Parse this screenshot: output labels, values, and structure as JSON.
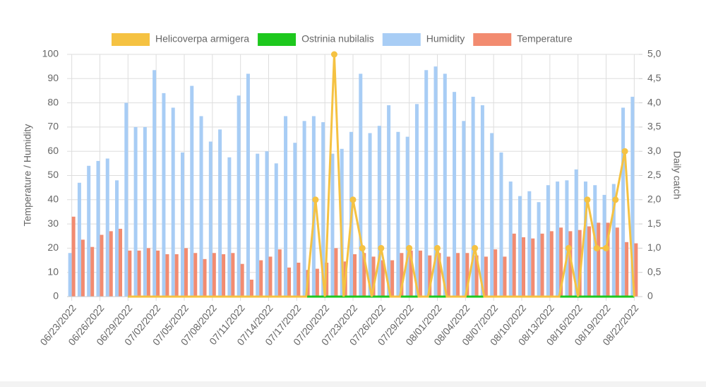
{
  "chart_data": {
    "type": "bar-line",
    "y_label": "Temperature / Humidity",
    "y2_label": "Daily catch",
    "categories": [
      "06/23/2022",
      null,
      null,
      "06/26/2022",
      null,
      null,
      "06/29/2022",
      null,
      null,
      "07/02/2022",
      null,
      null,
      "07/05/2022",
      null,
      null,
      "07/08/2022",
      null,
      null,
      "07/11/2022",
      null,
      null,
      "07/14/2022",
      null,
      null,
      "07/17/2022",
      null,
      null,
      "07/20/2022",
      null,
      null,
      "07/23/2022",
      null,
      null,
      "07/26/2022",
      null,
      null,
      "07/29/2022",
      null,
      null,
      "08/01/2022",
      null,
      null,
      "08/04/2022",
      null,
      null,
      "08/07/2022",
      null,
      null,
      "08/10/2022",
      null,
      null,
      "08/13/2022",
      null,
      null,
      "08/16/2022",
      null,
      null,
      "08/19/2022",
      null,
      null,
      "08/22/2022"
    ],
    "ylim": [
      0,
      100
    ],
    "yticks": [
      0,
      10,
      20,
      30,
      40,
      50,
      60,
      70,
      80,
      90,
      100
    ],
    "y2lim": [
      0,
      5
    ],
    "y2ticks": [
      0,
      {
        "value": 0.5,
        "label": "0,5"
      },
      {
        "value": 1,
        "label": "1,0"
      },
      {
        "value": 1.5,
        "label": "1,5"
      },
      {
        "value": 2,
        "label": "2,0"
      },
      {
        "value": 2.5,
        "label": "2,5"
      },
      {
        "value": 3,
        "label": "3,0"
      },
      {
        "value": 3.5,
        "label": "3,5"
      },
      {
        "value": 4,
        "label": "4,0"
      },
      {
        "value": 4.5,
        "label": "4,5"
      },
      {
        "value": 5,
        "label": "5,0"
      }
    ],
    "grid": true,
    "legend": "top",
    "series": [
      {
        "name": "Helicoverpa armigera",
        "type": "line",
        "axis": "y2",
        "color": "#f5c242",
        "values": [
          null,
          null,
          null,
          null,
          null,
          null,
          0,
          0,
          0,
          0,
          0,
          0,
          0,
          0,
          0,
          0,
          0,
          0,
          0,
          0,
          0,
          0,
          0,
          0,
          0,
          0,
          2,
          0,
          5,
          0,
          2,
          1,
          0,
          1,
          0,
          0,
          1,
          0,
          0,
          1,
          0,
          0,
          0,
          1,
          0,
          0,
          0,
          0,
          0,
          0,
          0,
          0,
          0,
          1,
          0,
          2,
          1,
          1,
          2,
          3,
          0
        ]
      },
      {
        "name": "Ostrinia nubilalis",
        "type": "line",
        "axis": "y2",
        "color": "#1ec81e",
        "values": [
          null,
          null,
          null,
          null,
          null,
          null,
          0,
          0,
          0,
          0,
          0,
          0,
          0,
          0,
          0,
          0,
          0,
          0,
          0,
          0,
          0,
          0,
          0,
          0,
          0,
          0,
          0,
          0,
          0,
          0,
          0,
          0,
          0,
          0,
          0,
          0,
          0,
          0,
          0,
          0,
          0,
          0,
          0,
          0,
          0,
          0,
          0,
          0,
          0,
          0,
          0,
          0,
          0,
          0,
          0,
          0,
          0,
          0,
          0,
          0,
          0
        ]
      },
      {
        "name": "Humidity",
        "type": "bar",
        "color": "#a8cdf5",
        "values": [
          18,
          47,
          54,
          56,
          57,
          48,
          80,
          70,
          70,
          93.5,
          84,
          78,
          59.5,
          87,
          74.5,
          64,
          69,
          57.5,
          83,
          92,
          59,
          60,
          55,
          74.5,
          63.5,
          72.5,
          74.5,
          72,
          59,
          61,
          68,
          92,
          67.5,
          70.5,
          79,
          68,
          66,
          79.5,
          93.5,
          95,
          92,
          84.5,
          72.5,
          82.5,
          79,
          67.5,
          59.5,
          47.5,
          41.5,
          43.5,
          39,
          46,
          47.5,
          48,
          52.5,
          47.5,
          46,
          42,
          46.5,
          78,
          82.5
        ]
      },
      {
        "name": "Temperature",
        "type": "bar",
        "color": "#f28b70",
        "values": [
          33,
          23.5,
          20.5,
          25.5,
          27,
          28,
          19,
          19,
          20,
          19,
          17.5,
          17.5,
          20,
          18,
          15.5,
          18,
          17.5,
          18,
          13.5,
          7,
          15,
          16.5,
          19.5,
          12,
          14,
          11,
          11.5,
          14,
          20,
          14.5,
          17.5,
          18,
          16.5,
          15,
          15,
          18,
          19,
          19,
          17,
          18,
          16.5,
          18,
          18,
          17,
          16.5,
          19.5,
          16.5,
          26,
          24.5,
          24,
          26,
          27,
          28.5,
          27,
          27.5,
          29,
          30.5,
          30.5,
          28.5,
          22.5,
          22
        ]
      }
    ]
  }
}
